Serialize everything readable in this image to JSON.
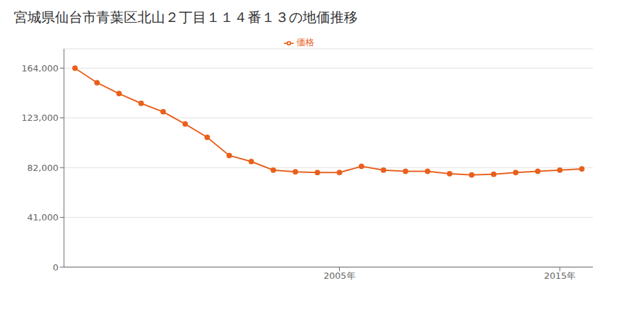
{
  "chart_data": {
    "type": "line",
    "title": "宮城県仙台市青葉区北山２丁目１１４番１３の地価推移",
    "x": [
      1993,
      1994,
      1995,
      1996,
      1997,
      1998,
      1999,
      2000,
      2001,
      2002,
      2003,
      2004,
      2005,
      2006,
      2007,
      2008,
      2009,
      2010,
      2011,
      2012,
      2013,
      2014,
      2015,
      2016
    ],
    "series": [
      {
        "name": "価格",
        "color": "#e8601c",
        "marker": "circle",
        "values": [
          164000,
          152000,
          143000,
          135000,
          128000,
          118000,
          107000,
          92000,
          87000,
          80000,
          78500,
          78000,
          78000,
          83000,
          80000,
          79000,
          79000,
          77000,
          76000,
          76500,
          78000,
          79000,
          80000,
          81000
        ]
      }
    ],
    "xlim": [
      1992.5,
      2016.5
    ],
    "xticks": [
      {
        "value": 2005,
        "label": "2005年"
      },
      {
        "value": 2015,
        "label": "2015年"
      }
    ],
    "ylim": [
      0,
      180000
    ],
    "yticks": [
      0,
      {
        "value": 41000,
        "label": "41,000"
      },
      {
        "value": 82000,
        "label": "82,000"
      },
      {
        "value": 123000,
        "label": "123,000"
      },
      {
        "value": 164000,
        "label": "164,000"
      }
    ],
    "grid": "y",
    "legend": "top"
  }
}
